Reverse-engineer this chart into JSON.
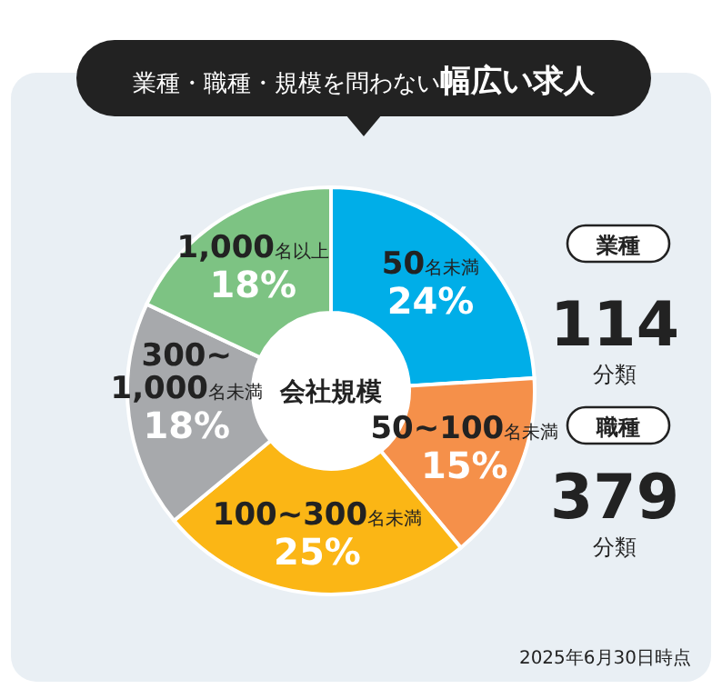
{
  "chart_data": {
    "type": "donut",
    "title": "業種・職種・規模を問わない**幅広い求人**",
    "categories": [
      "50名未満",
      "50~100名未満",
      "100~300名未満",
      "300~1,000名未満",
      "1,000名以上"
    ],
    "values": [
      24,
      15,
      25,
      18,
      18
    ],
    "value_labels": [
      "24%",
      "15%",
      "25%",
      "18%",
      "18%"
    ],
    "colors": [
      "#00aee8",
      "#f5904a",
      "#fbb615",
      "#a7a9ac",
      "#7dc383"
    ],
    "annotations": [
      "会社規模",
      "業種",
      "114",
      "分類",
      "職種",
      "379",
      "分類",
      "2025年6月30日時点"
    ]
  }
}
